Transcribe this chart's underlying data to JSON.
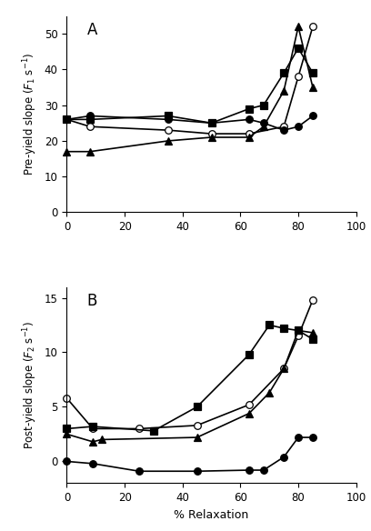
{
  "panel_A": {
    "title": "A",
    "ylabel": "Pre-yield slope ($F_1$ s$^{-1}$)",
    "ylim": [
      0,
      55
    ],
    "yticks": [
      0,
      10,
      20,
      30,
      40,
      50
    ],
    "xlim": [
      0,
      100
    ],
    "xticks": [
      0,
      20,
      40,
      60,
      80,
      100
    ],
    "series": {
      "open_circle": {
        "x": [
          0,
          8,
          35,
          50,
          63,
          75,
          80,
          85
        ],
        "y": [
          26,
          24,
          23,
          22,
          22,
          24,
          38,
          52
        ]
      },
      "filled_circle": {
        "x": [
          0,
          8,
          35,
          50,
          63,
          68,
          75,
          80,
          85
        ],
        "y": [
          26,
          27,
          26,
          25,
          26,
          25,
          23,
          24,
          27
        ]
      },
      "filled_square": {
        "x": [
          0,
          8,
          35,
          50,
          63,
          68,
          75,
          80,
          85
        ],
        "y": [
          26,
          26,
          27,
          25,
          29,
          30,
          39,
          46,
          39
        ]
      },
      "filled_triangle": {
        "x": [
          0,
          8,
          35,
          50,
          63,
          68,
          75,
          80,
          85
        ],
        "y": [
          17,
          17,
          20,
          21,
          21,
          24,
          34,
          52,
          35
        ]
      }
    }
  },
  "panel_B": {
    "title": "B",
    "ylabel": "Post-yield slope ($F_2$ s$^{-1}$)",
    "ylim": [
      -2,
      16
    ],
    "yticks": [
      0,
      5,
      10,
      15
    ],
    "xlim": [
      0,
      100
    ],
    "xticks": [
      0,
      20,
      40,
      60,
      80,
      100
    ],
    "xlabel": "% Relaxation",
    "hline_y": -2,
    "series": {
      "open_circle": {
        "x": [
          0,
          9,
          25,
          45,
          63,
          75,
          80,
          85
        ],
        "y": [
          5.8,
          3.0,
          3.0,
          3.3,
          5.2,
          8.5,
          11.5,
          14.8
        ]
      },
      "filled_circle": {
        "x": [
          0,
          9,
          25,
          45,
          63,
          68,
          75,
          80,
          85
        ],
        "y": [
          0.0,
          -0.2,
          -0.9,
          -0.9,
          -0.8,
          -0.8,
          0.4,
          2.2,
          2.2
        ]
      },
      "filled_square": {
        "x": [
          0,
          9,
          30,
          45,
          63,
          70,
          75,
          80,
          85
        ],
        "y": [
          3.0,
          3.2,
          2.8,
          5.0,
          9.8,
          12.5,
          12.2,
          12.0,
          11.2
        ]
      },
      "filled_triangle": {
        "x": [
          0,
          9,
          12,
          45,
          63,
          70,
          75,
          80,
          85
        ],
        "y": [
          2.5,
          1.8,
          2.0,
          2.2,
          4.4,
          6.3,
          8.5,
          12.0,
          11.8
        ]
      }
    }
  },
  "color": "black",
  "linewidth": 1.2,
  "markersize": 5.5
}
